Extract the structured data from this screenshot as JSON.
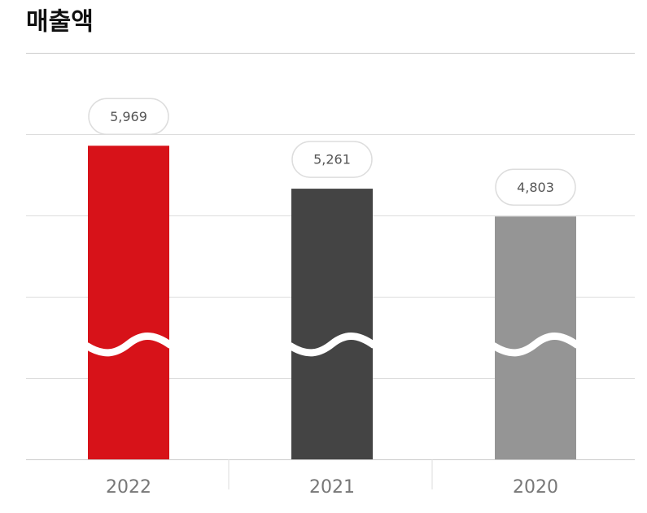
{
  "chart_data": {
    "type": "bar",
    "title": "매출액",
    "categories": [
      "2022",
      "2021",
      "2020"
    ],
    "values": [
      5969,
      5261,
      4803
    ],
    "value_labels": [
      "5,969",
      "5,261",
      "4,803"
    ],
    "colors": [
      "#d71219",
      "#444444",
      "#959595"
    ],
    "ylim": [
      800,
      7500
    ],
    "grid": true,
    "broken_axis": true
  }
}
